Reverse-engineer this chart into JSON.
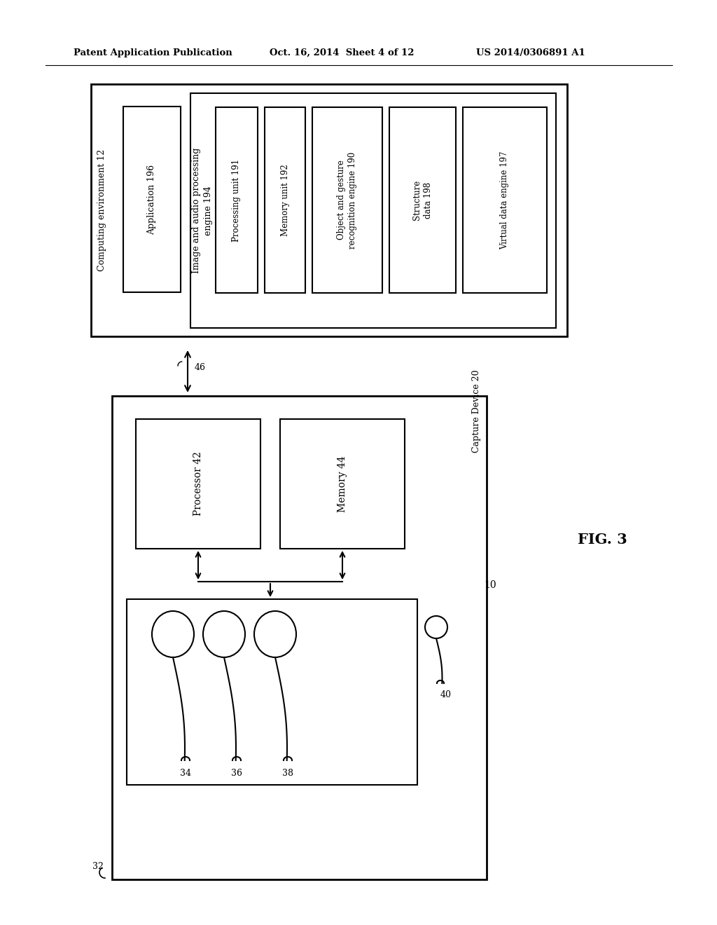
{
  "bg_color": "#ffffff",
  "header_left": "Patent Application Publication",
  "header_mid": "Oct. 16, 2014  Sheet 4 of 12",
  "header_right": "US 2014/0306891 A1",
  "fig_label": "FIG. 3",
  "fig_label_ref": "10",
  "computing_env_label": "Computing environment 12",
  "application_label": "Application 196",
  "image_audio_label": "Image and audio processing\nengine 194",
  "processing_unit_label": "Processing unit 191",
  "memory_unit_label": "Memory unit 192",
  "object_gesture_label": "Object and gesture\nrecognition engine 190",
  "structure_data_label": "Structure\ndata 198",
  "virtual_data_label": "Virtual data engine 197",
  "capture_device_label": "Capture Device 20",
  "processor_label": "Processor 42",
  "memory_label": "Memory 44",
  "arrow_label": "46",
  "capture_box_label": "32",
  "cam1_label": "34",
  "cam2_label": "36",
  "cam3_label": "38",
  "mic_label": "40",
  "underline_numbers": [
    "12",
    "196",
    "194",
    "191",
    "192",
    "190",
    "198",
    "197",
    "20",
    "42",
    "44",
    "46",
    "32",
    "34",
    "36",
    "38",
    "40",
    "10"
  ]
}
